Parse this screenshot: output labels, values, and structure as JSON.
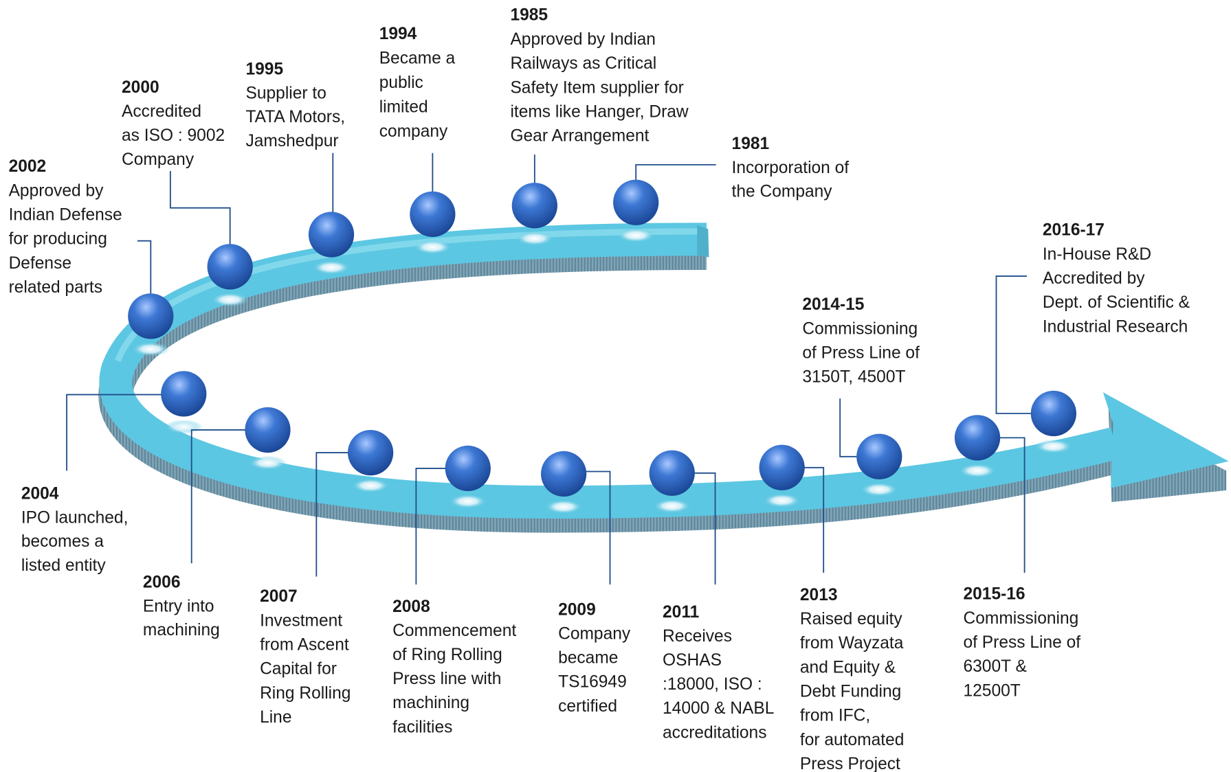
{
  "events": [
    {
      "year": "1981",
      "lines": [
        "Incorporation of",
        "the Company"
      ]
    },
    {
      "year": "1985",
      "lines": [
        "Approved by Indian",
        "Railways as Critical",
        "Safety Item supplier for",
        "items like Hanger, Draw",
        "Gear Arrangement"
      ]
    },
    {
      "year": "1994",
      "lines": [
        "Became a",
        "public",
        "limited",
        "company"
      ]
    },
    {
      "year": "1995",
      "lines": [
        "Supplier to",
        "TATA Motors,",
        "Jamshedpur"
      ]
    },
    {
      "year": "2000",
      "lines": [
        "Accredited",
        "as ISO : 9002",
        "Company"
      ]
    },
    {
      "year": "2002",
      "lines": [
        "Approved by",
        "Indian Defense",
        "for producing",
        "Defense",
        "related parts"
      ]
    },
    {
      "year": "2004",
      "lines": [
        "IPO launched,",
        "becomes a",
        "listed entity"
      ]
    },
    {
      "year": "2006",
      "lines": [
        "Entry into",
        "machining"
      ]
    },
    {
      "year": "2007",
      "lines": [
        "Investment",
        "from Ascent",
        "Capital for",
        "Ring Rolling",
        "Line"
      ]
    },
    {
      "year": "2008",
      "lines": [
        "Commencement",
        "of Ring Rolling",
        "Press line with",
        "machining",
        "facilities"
      ]
    },
    {
      "year": "2009",
      "lines": [
        "Company",
        "became",
        "TS16949",
        "certified"
      ]
    },
    {
      "year": "2011",
      "lines": [
        "Receives",
        "OSHAS",
        ":18000, ISO :",
        "14000 & NABL",
        "accreditations"
      ]
    },
    {
      "year": "2013",
      "lines": [
        "Raised equity",
        "from Wayzata",
        "and Equity &",
        "Debt Funding",
        "from IFC,",
        "for automated",
        "Press Project"
      ]
    },
    {
      "year": "2014-15",
      "lines": [
        "Commissioning",
        "of Press Line of",
        "3150T, 4500T"
      ]
    },
    {
      "year": "2015-16",
      "lines": [
        "Commissioning",
        "of Press Line of",
        "6300T &",
        "12500T"
      ]
    },
    {
      "year": "2016-17",
      "lines": [
        "In-House R&D",
        "Accredited by",
        "Dept. of Scientific  &",
        "Industrial Research"
      ]
    }
  ]
}
